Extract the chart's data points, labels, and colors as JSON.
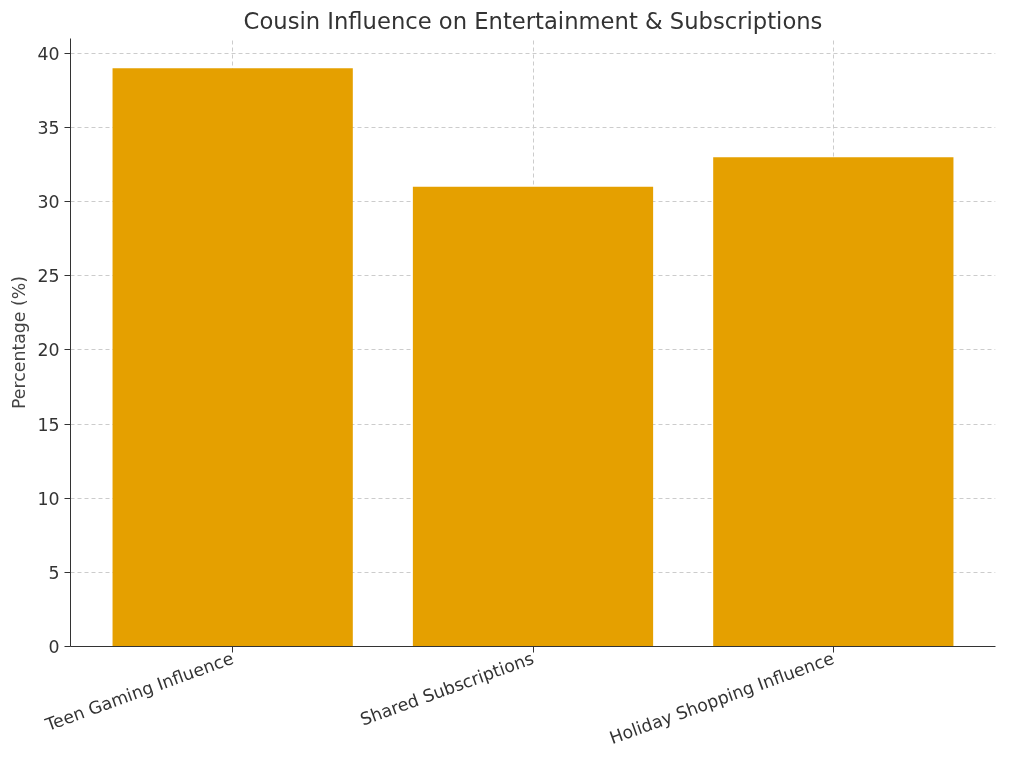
{
  "chart_data": {
    "type": "bar",
    "title": "Cousin Influence on Entertainment & Subscriptions",
    "ylabel": "Percentage (%)",
    "categories": [
      "Teen Gaming Influence",
      "Shared Subscriptions",
      "Holiday Shopping Influence"
    ],
    "values": [
      39,
      31,
      33
    ],
    "color": "#e5a000",
    "ylim": [
      0,
      41
    ],
    "yticks": [
      0,
      5,
      10,
      15,
      20,
      25,
      30,
      35,
      40
    ],
    "grid": true
  }
}
